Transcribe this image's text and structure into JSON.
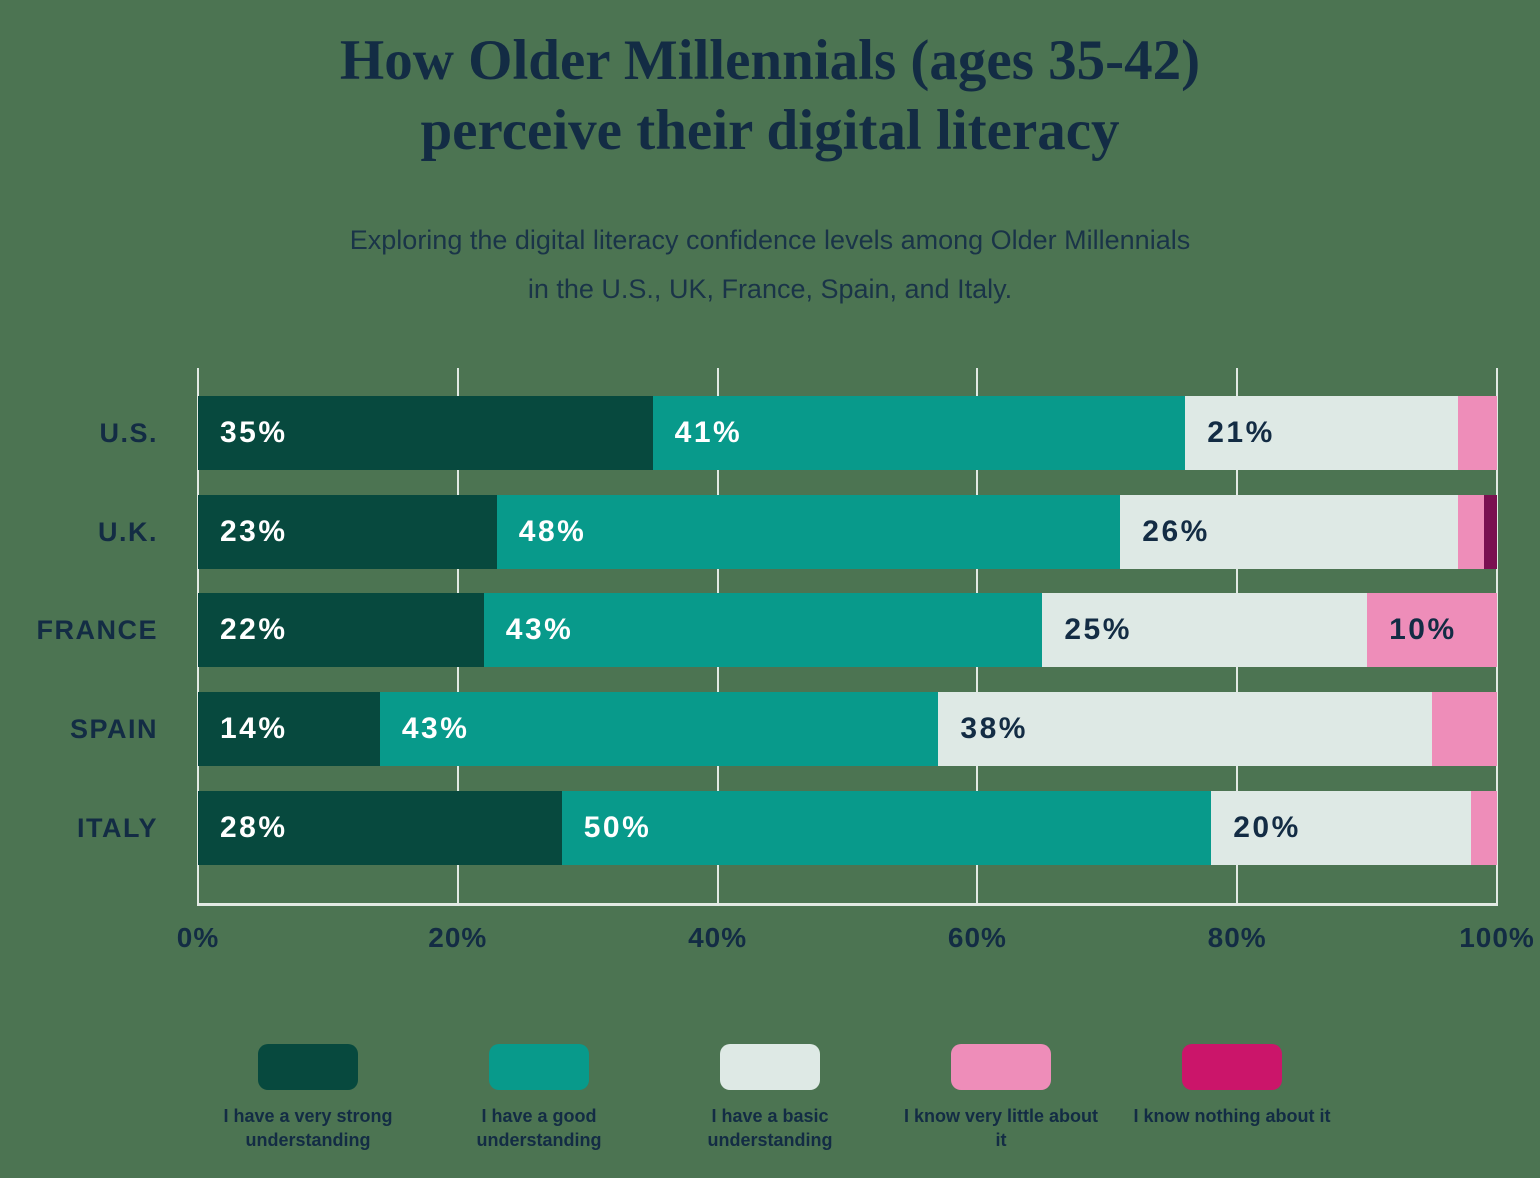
{
  "header": {
    "title_line1": "How Older Millennials (ages 35-42)",
    "title_line2": "perceive their digital literacy",
    "subtitle_line1": "Exploring the digital literacy confidence levels among Older Millennials",
    "subtitle_line2": "in the U.S., UK, France, Spain, and Italy."
  },
  "colors": {
    "background": "#4C7452",
    "text_navy": "#132C44",
    "gridline": "#E2EAE4",
    "very_strong": "#07493E",
    "good": "#089A8B",
    "basic": "#DEE9E5",
    "very_little": "#EE8DB9",
    "nothing_bar": "#7A1051",
    "nothing_legend": "#CB156A"
  },
  "chart_data": {
    "type": "bar",
    "stacked": true,
    "orientation": "horizontal",
    "title": "How Older Millennials (ages 35-42) perceive their digital literacy",
    "xlabel": "",
    "ylabel": "",
    "xlim": [
      0,
      100
    ],
    "grid": true,
    "legend_position": "bottom",
    "categories": [
      "U.S.",
      "U.K.",
      "FRANCE",
      "SPAIN",
      "ITALY"
    ],
    "xticks": [
      "0%",
      "20%",
      "40%",
      "60%",
      "80%",
      "100%"
    ],
    "value_suffix": "%",
    "label_min_value": 10,
    "series": [
      {
        "name": "I have a very strong understanding",
        "color": "#07493E",
        "label_color": "#FFFFFF",
        "values": [
          35,
          23,
          22,
          14,
          28
        ]
      },
      {
        "name": "I have a good understanding",
        "color": "#089A8B",
        "label_color": "#FFFFFF",
        "values": [
          41,
          48,
          43,
          43,
          50
        ]
      },
      {
        "name": "I have a basic understanding",
        "color": "#DEE9E5",
        "label_color": "#132C44",
        "values": [
          21,
          26,
          25,
          38,
          20
        ]
      },
      {
        "name": "I know very little about it",
        "color": "#EE8DB9",
        "label_color": "#132C44",
        "values": [
          3,
          2,
          10,
          5,
          2
        ]
      },
      {
        "name": "I know nothing about it",
        "color": "#7A1051",
        "legend_color": "#CB156A",
        "label_color": "#FFFFFF",
        "values": [
          0,
          1,
          0,
          0,
          0
        ]
      }
    ]
  }
}
